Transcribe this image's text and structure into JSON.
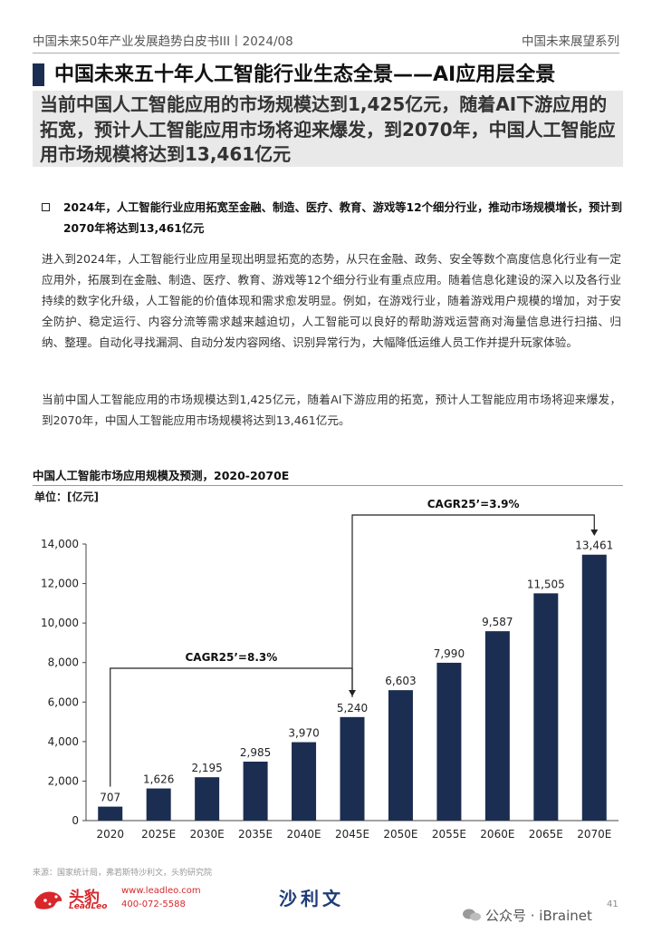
{
  "header": {
    "left": "中国未来50年产业发展趋势白皮书III丨2024/08",
    "right": "中国未来展望系列"
  },
  "title": "中国未来五十年人工智能行业生态全景——AI应用层全景",
  "summary": "当前中国人工智能应用的市场规模达到1,425亿元，随着AI下游应用的拓宽，预计人工智能应用市场将迎来爆发，到2070年，中国人工智能应用市场规模将达到13,461亿元",
  "bullet": "2024年，人工智能行业应用拓宽至金融、制造、医疗、教育、游戏等12个细分行业，推动市场规模增长，预计到2070年将达到13,461亿元",
  "paragraphs": [
    "进入到2024年，人工智能行业应用呈现出明显拓宽的态势，从只在金融、政务、安全等数个高度信息化行业有一定应用外，拓展到在金融、制造、医疗、教育、游戏等12个细分行业有重点应用。随着信息化建设的深入以及各行业持续的数字化升级，人工智能的价值体现和需求愈发明显。例如，在游戏行业，随着游戏用户规模的增加，对于安全防护、稳定运行、内容分流等需求越来越迫切，人工智能可以良好的帮助游戏运营商对海量信息进行扫描、归纳、整理。自动化寻找漏洞、自动分发内容网络、识别异常行为，大幅降低运维人员工作并提升玩家体验。",
    "当前中国人工智能应用的市场规模达到1,425亿元，随着AI下游应用的拓宽，预计人工智能应用市场将迎来爆发，到2070年，中国人工智能应用市场规模将达到13,461亿元。"
  ],
  "chart_data": {
    "type": "bar",
    "title": "中国人工智能市场应用规模及预测，2020-2070E",
    "unit_label": "单位：[亿元]",
    "categories": [
      "2020",
      "2025E",
      "2030E",
      "2035E",
      "2040E",
      "2045E",
      "2050E",
      "2055E",
      "2060E",
      "2065E",
      "2070E"
    ],
    "values": [
      707,
      1626,
      2195,
      2985,
      3970,
      5240,
      6603,
      7990,
      9587,
      11505,
      13461
    ],
    "value_labels": [
      "707",
      "1,626",
      "2,195",
      "2,985",
      "3,970",
      "5,240",
      "6,603",
      "7,990",
      "9,587",
      "11,505",
      "13,461"
    ],
    "yticks": [
      "0",
      "2,000",
      "4,000",
      "6,000",
      "8,000",
      "10,000",
      "12,000",
      "14,000"
    ],
    "ylim": [
      0,
      14000
    ],
    "bar_color": "#1c2d52",
    "annotations": [
      {
        "text": "CAGR25’=8.3%",
        "from": "2020",
        "to": "2045E"
      },
      {
        "text": "CAGR25’=3.9%",
        "from": "2045E",
        "to": "2070E"
      }
    ]
  },
  "source": "来源：国家统计局，弗若斯特沙利文，头豹研究院",
  "footer": {
    "logo_cn": "头豹",
    "logo_en": "LeadLeo",
    "url": "www.leadleo.com",
    "tel": "400-072-5588",
    "partner": "沙利文",
    "page": "41",
    "watermark": "公众号 · iBrainet"
  },
  "colors": {
    "brand_red": "#d8262a",
    "navy": "#1c2d52",
    "partner_blue": "#1f3b77"
  }
}
